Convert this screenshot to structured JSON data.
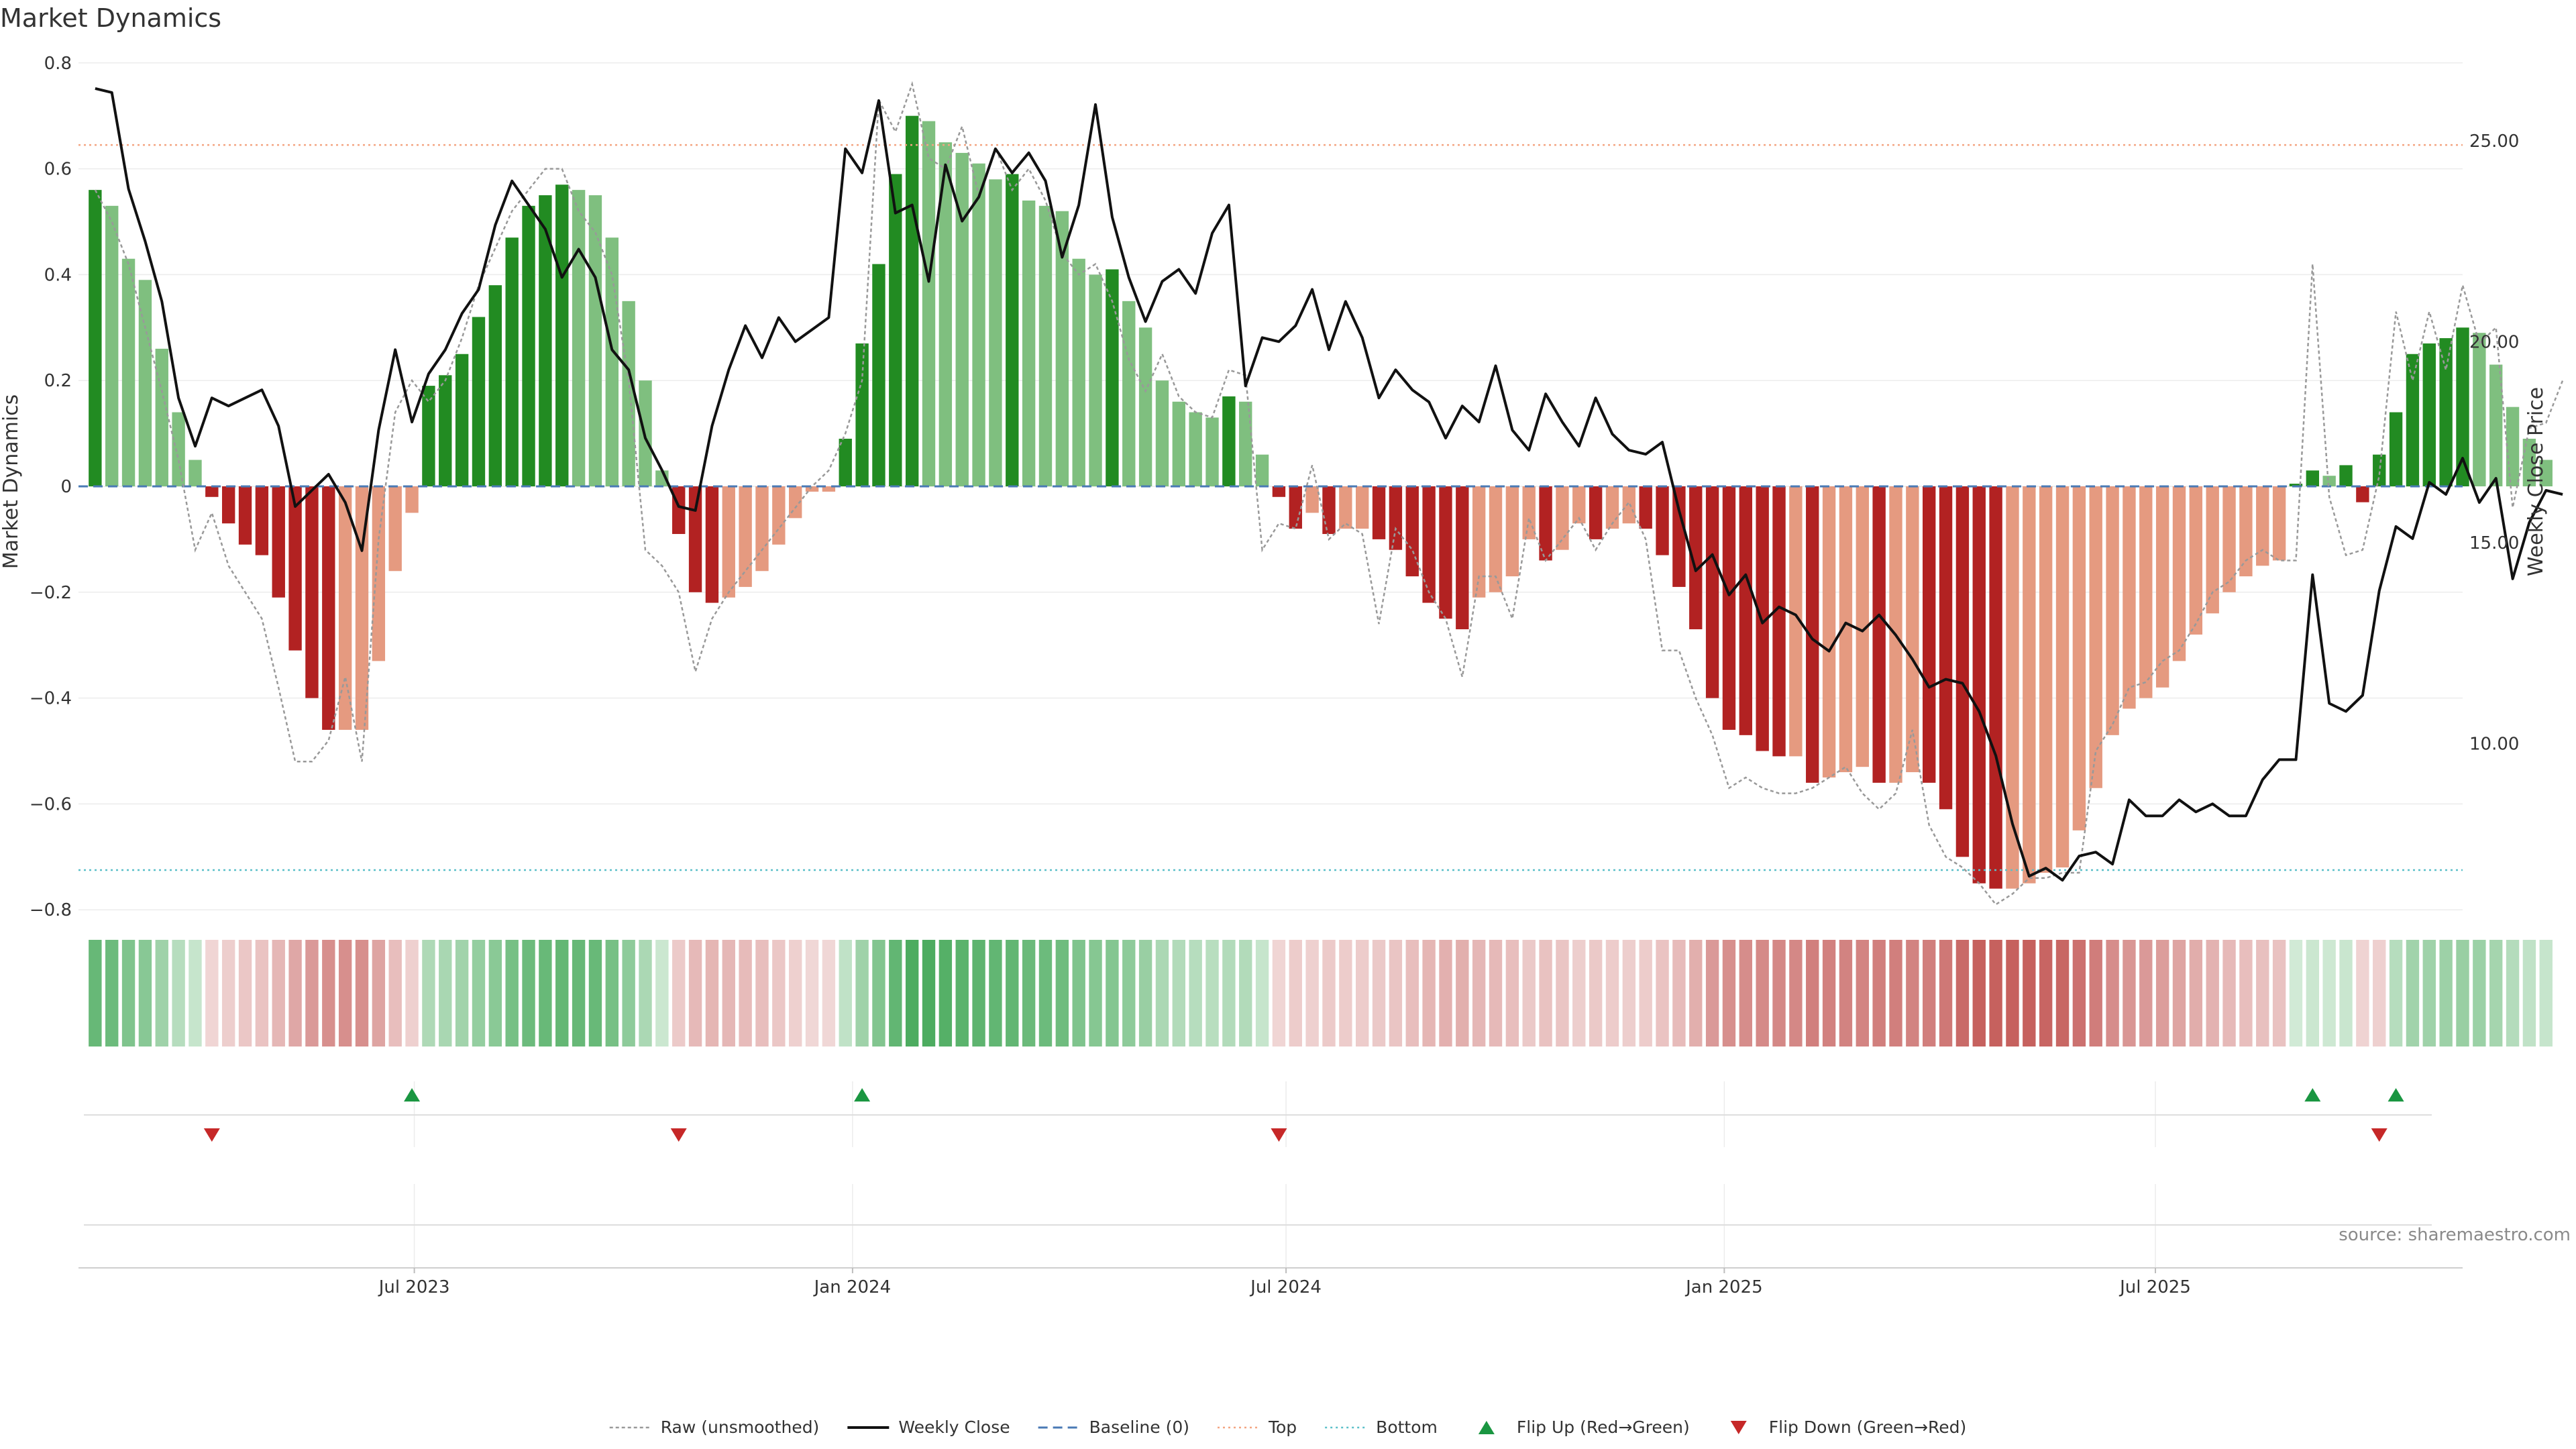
{
  "chart_data": {
    "type": "bar",
    "title": "Market Dynamics",
    "ylabel": "Market Dynamics",
    "y2label": "Weekly Close Price",
    "ylim": [
      -0.82,
      0.82
    ],
    "y2lim": [
      5.6,
      27.2
    ],
    "yticks": [
      "0.8",
      "0.6",
      "0.4",
      "0.2",
      "0",
      "−0.2",
      "−0.4",
      "−0.6",
      "−0.8"
    ],
    "y2ticks": [
      "25.00",
      "20.00",
      "15.00",
      "10.00"
    ],
    "xlim": [
      "2023-02-10",
      "2025-11-07"
    ],
    "xticks": [
      {
        "date": "2023-07-01",
        "label": "Jul 2023"
      },
      {
        "date": "2024-01-01",
        "label": "Jan 2024"
      },
      {
        "date": "2024-07-01",
        "label": "Jul 2024"
      },
      {
        "date": "2025-01-01",
        "label": "Jan 2025"
      },
      {
        "date": "2025-07-01",
        "label": "Jul 2025"
      }
    ],
    "start_week": "2023-02-17",
    "top_level": 0.645,
    "bottom_level": -0.725,
    "baseline": 0,
    "smoothed": [
      0.56,
      0.53,
      0.43,
      0.39,
      0.26,
      0.14,
      0.05,
      -0.02,
      -0.07,
      -0.11,
      -0.13,
      -0.21,
      -0.31,
      -0.4,
      -0.46,
      -0.46,
      -0.46,
      -0.33,
      -0.16,
      -0.05,
      0.19,
      0.21,
      0.25,
      0.32,
      0.38,
      0.47,
      0.53,
      0.55,
      0.57,
      0.56,
      0.55,
      0.47,
      0.35,
      0.2,
      0.03,
      -0.09,
      -0.2,
      -0.22,
      -0.21,
      -0.19,
      -0.16,
      -0.11,
      -0.06,
      -0.01,
      -0.01,
      0.09,
      0.27,
      0.42,
      0.59,
      0.7,
      0.69,
      0.65,
      0.63,
      0.61,
      0.58,
      0.59,
      0.54,
      0.53,
      0.52,
      0.43,
      0.4,
      0.41,
      0.35,
      0.3,
      0.2,
      0.16,
      0.14,
      0.13,
      0.17,
      0.16,
      0.06,
      -0.02,
      -0.08,
      -0.05,
      -0.09,
      -0.08,
      -0.08,
      -0.1,
      -0.12,
      -0.17,
      -0.22,
      -0.25,
      -0.27,
      -0.21,
      -0.2,
      -0.17,
      -0.1,
      -0.14,
      -0.12,
      -0.07,
      -0.1,
      -0.08,
      -0.07,
      -0.08,
      -0.13,
      -0.19,
      -0.27,
      -0.4,
      -0.46,
      -0.47,
      -0.5,
      -0.51,
      -0.51,
      -0.56,
      -0.55,
      -0.54,
      -0.53,
      -0.56,
      -0.56,
      -0.54,
      -0.56,
      -0.61,
      -0.7,
      -0.75,
      -0.76,
      -0.76,
      -0.75,
      -0.73,
      -0.72,
      -0.65,
      -0.57,
      -0.47,
      -0.42,
      -0.4,
      -0.38,
      -0.33,
      -0.28,
      -0.24,
      -0.2,
      -0.17,
      -0.15,
      -0.14,
      0.005,
      0.03,
      0.02,
      0.04,
      -0.03,
      0.06,
      0.14,
      0.25,
      0.27,
      0.28,
      0.3,
      0.29,
      0.23,
      0.15,
      0.09,
      0.05
    ],
    "raw": [
      0.56,
      0.5,
      0.42,
      0.3,
      0.18,
      0.05,
      -0.12,
      -0.05,
      -0.15,
      -0.2,
      -0.25,
      -0.38,
      -0.52,
      -0.52,
      -0.48,
      -0.36,
      -0.52,
      -0.1,
      0.14,
      0.2,
      0.16,
      0.2,
      0.28,
      0.38,
      0.45,
      0.52,
      0.56,
      0.6,
      0.6,
      0.52,
      0.48,
      0.4,
      0.2,
      -0.12,
      -0.15,
      -0.2,
      -0.35,
      -0.25,
      -0.2,
      -0.16,
      -0.12,
      -0.08,
      -0.04,
      0.0,
      0.03,
      0.1,
      0.2,
      0.73,
      0.67,
      0.76,
      0.62,
      0.6,
      0.68,
      0.55,
      0.64,
      0.56,
      0.6,
      0.54,
      0.44,
      0.4,
      0.42,
      0.35,
      0.24,
      0.18,
      0.25,
      0.17,
      0.14,
      0.13,
      0.22,
      0.21,
      -0.12,
      -0.07,
      -0.08,
      0.04,
      -0.1,
      -0.07,
      -0.09,
      -0.26,
      -0.08,
      -0.12,
      -0.2,
      -0.25,
      -0.36,
      -0.17,
      -0.17,
      -0.25,
      -0.06,
      -0.14,
      -0.1,
      -0.06,
      -0.12,
      -0.07,
      -0.03,
      -0.1,
      -0.31,
      -0.31,
      -0.4,
      -0.47,
      -0.57,
      -0.55,
      -0.57,
      -0.58,
      -0.58,
      -0.57,
      -0.55,
      -0.53,
      -0.58,
      -0.61,
      -0.58,
      -0.46,
      -0.64,
      -0.7,
      -0.72,
      -0.75,
      -0.79,
      -0.77,
      -0.74,
      -0.74,
      -0.73,
      -0.73,
      -0.5,
      -0.45,
      -0.38,
      -0.37,
      -0.33,
      -0.31,
      -0.26,
      -0.2,
      -0.18,
      -0.14,
      -0.12,
      -0.14,
      -0.14,
      0.42,
      -0.02,
      -0.13,
      -0.12,
      0.02,
      0.33,
      0.2,
      0.33,
      0.22,
      0.38,
      0.27,
      0.3,
      -0.04,
      0.11,
      0.12,
      0.2
    ],
    "close": [
      26.3,
      26.2,
      23.8,
      22.5,
      21.0,
      18.6,
      17.4,
      18.6,
      18.4,
      18.6,
      18.8,
      17.9,
      15.9,
      16.3,
      16.7,
      16.0,
      14.8,
      17.8,
      19.8,
      18.0,
      19.2,
      19.8,
      20.7,
      21.3,
      22.9,
      24.0,
      23.4,
      22.8,
      21.6,
      22.3,
      21.6,
      19.8,
      19.3,
      17.6,
      16.8,
      15.9,
      15.8,
      17.9,
      19.3,
      20.4,
      19.6,
      20.6,
      20.0,
      20.3,
      20.6,
      24.8,
      24.2,
      26.0,
      23.2,
      23.4,
      21.5,
      24.4,
      23.0,
      23.6,
      24.8,
      24.2,
      24.7,
      24.0,
      22.1,
      23.4,
      25.9,
      23.1,
      21.6,
      20.5,
      21.5,
      21.8,
      21.2,
      22.7,
      23.4,
      18.9,
      20.1,
      20.0,
      20.4,
      21.3,
      19.8,
      21.0,
      20.1,
      18.6,
      19.3,
      18.8,
      18.5,
      17.6,
      18.4,
      18.0,
      19.4,
      17.8,
      17.3,
      18.7,
      18.0,
      17.4,
      18.6,
      17.7,
      17.3,
      17.2,
      17.5,
      15.8,
      14.3,
      14.7,
      13.7,
      14.2,
      13.0,
      13.4,
      13.2,
      12.6,
      12.3,
      13.0,
      12.8,
      13.2,
      12.7,
      12.1,
      11.4,
      11.6,
      11.5,
      10.8,
      9.7,
      8.0,
      6.7,
      6.9,
      6.6,
      7.2,
      7.3,
      7.0,
      8.6,
      8.2,
      8.2,
      8.6,
      8.3,
      8.5,
      8.2,
      8.2,
      9.1,
      9.6,
      9.6,
      14.2,
      11.0,
      10.8,
      11.2,
      13.8,
      15.4,
      15.1,
      16.5,
      16.2,
      17.1,
      16.0,
      16.6,
      14.1,
      15.5,
      16.3,
      16.2
    ],
    "flip_up_weeks": [
      19,
      46,
      133,
      138
    ],
    "flip_down_weeks": [
      7,
      35,
      71,
      137
    ],
    "strip_neg_weeks": [
      137
    ],
    "colors": {
      "pos_strong": "#228b22",
      "pos_light": "#7fbf7f",
      "neg_strong": "#b22222",
      "neg_light": "#e59a80",
      "close": "#111111",
      "raw": "#999999",
      "baseline": "#4a7ab5",
      "top": "#f4a582",
      "bottom": "#5bc0c9",
      "flip_up": "#1a9641",
      "flip_down": "#c62828"
    },
    "legend_position": "bottom-center",
    "legend": [
      {
        "label": "Raw (unsmoothed)",
        "style": "dotted-gray"
      },
      {
        "label": "Weekly Close",
        "style": "solid-black"
      },
      {
        "label": "Baseline (0)",
        "style": "dashed-blue"
      },
      {
        "label": "Top",
        "style": "dotted-orange"
      },
      {
        "label": "Bottom",
        "style": "dotted-cyan"
      },
      {
        "label": "Flip Up (Red→Green)",
        "style": "triangle-up-green"
      },
      {
        "label": "Flip Down (Green→Red)",
        "style": "triangle-down-red"
      }
    ],
    "source": "source: sharemaestro.com"
  }
}
